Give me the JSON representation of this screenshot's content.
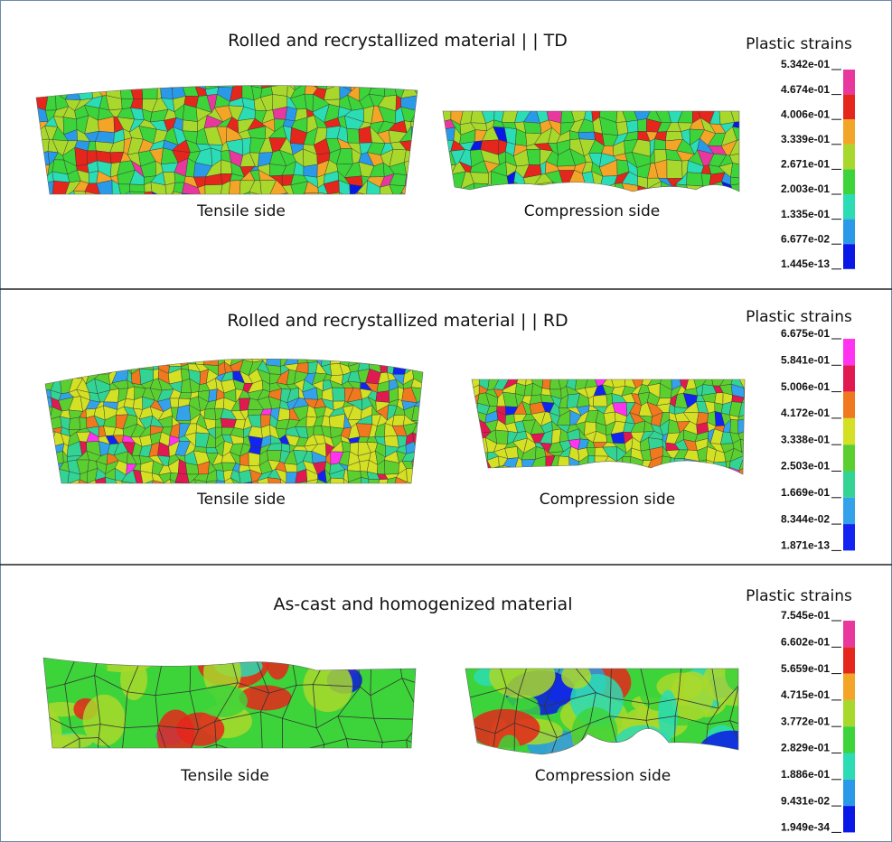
{
  "panels": [
    {
      "title": "Rolled and recrystallized material | | TD",
      "tensile_label": "Tensile side",
      "compression_label": "Compression side",
      "legend": {
        "title": "Plastic strains",
        "labels": [
          "5.342e-01",
          "4.674e-01",
          "4.006e-01",
          "3.339e-01",
          "2.671e-01",
          "2.003e-01",
          "1.335e-01",
          "6.677e-02",
          "1.445e-13"
        ]
      }
    },
    {
      "title": "Rolled and recrystallized material | | RD",
      "tensile_label": "Tensile side",
      "compression_label": "Compression side",
      "legend": {
        "title": "Plastic strains",
        "labels": [
          "6.675e-01",
          "5.841e-01",
          "5.006e-01",
          "4.172e-01",
          "3.338e-01",
          "2.503e-01",
          "1.669e-01",
          "8.344e-02",
          "1.871e-13"
        ]
      }
    },
    {
      "title": "As-cast and homogenized material",
      "tensile_label": "Tensile side",
      "compression_label": "Compression side",
      "legend": {
        "title": "Plastic strains",
        "labels": [
          "7.545e-01",
          "6.602e-01",
          "5.659e-01",
          "4.715e-01",
          "3.772e-01",
          "2.829e-01",
          "1.886e-01",
          "9.431e-02",
          "1.949e-34"
        ]
      }
    }
  ]
}
